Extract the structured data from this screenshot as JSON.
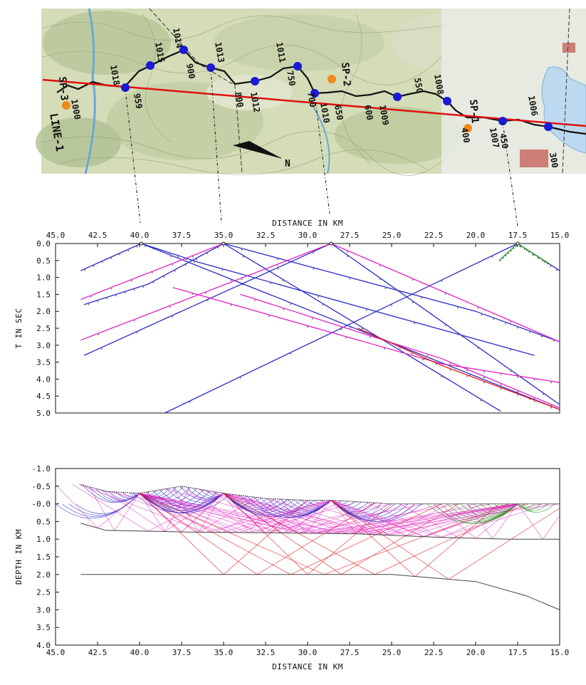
{
  "map": {
    "line_label": "LINE-1",
    "shot_labels": [
      "SP-3",
      "SP-2",
      "SP-1"
    ],
    "station_labels": [
      "1000",
      "1018",
      "959",
      "1015",
      "1014",
      "900",
      "1013",
      "1012",
      "800",
      "1011",
      "750",
      "700",
      "1010",
      "650",
      "600",
      "1009",
      "550",
      "1008",
      "1007",
      "450",
      "400",
      "1006",
      "300"
    ],
    "north_label": "N",
    "colors": {
      "profile_line": "#e01010",
      "station": "#1a1ad8",
      "shot": "#f08a1c",
      "route": "#111111"
    }
  },
  "chart_data": [
    {
      "type": "line",
      "panel": "travel-time",
      "xlabel": "DISTANCE IN KM",
      "ylabel": "T IN SEC",
      "xlim": [
        45.0,
        15.0
      ],
      "ylim": [
        0.0,
        5.0
      ],
      "x_ticks": [
        "45.0",
        "42.5",
        "40.0",
        "37.5",
        "35.0",
        "32.5",
        "30.0",
        "27.5",
        "25.0",
        "22.5",
        "20.0",
        "17.5",
        "15.0"
      ],
      "y_ticks": [
        "0.0",
        "0.5",
        "1.0",
        "1.5",
        "2.0",
        "2.5",
        "3.0",
        "3.5",
        "4.0",
        "4.5",
        "5.0"
      ],
      "shots_x": [
        39.9,
        35.0,
        28.6,
        17.5
      ],
      "series": [
        {
          "color": "#2b2bc8",
          "points": [
            [
              43.5,
              0.8
            ],
            [
              39.9,
              0.0
            ],
            [
              15.0,
              4.9
            ]
          ]
        },
        {
          "color": "#2b2bc8",
          "points": [
            [
              43.3,
              1.8
            ],
            [
              39.5,
              1.2
            ],
            [
              35.0,
              0.0
            ],
            [
              18.5,
              4.95
            ]
          ]
        },
        {
          "color": "#2b2bc8",
          "points": [
            [
              43.3,
              3.3
            ],
            [
              28.6,
              0.0
            ],
            [
              15.0,
              4.75
            ]
          ]
        },
        {
          "color": "#2b2bc8",
          "points": [
            [
              38.5,
              5.0
            ],
            [
              17.5,
              0.0
            ],
            [
              15.0,
              0.8
            ]
          ]
        },
        {
          "color": "#2b2bc8",
          "points": [
            [
              39.9,
              0.0
            ],
            [
              36.5,
              0.55
            ],
            [
              16.5,
              3.3
            ]
          ]
        },
        {
          "color": "#2b2bc8",
          "points": [
            [
              35.0,
              0.0
            ],
            [
              20.0,
              2.0
            ],
            [
              15.0,
              2.9
            ]
          ]
        },
        {
          "color": "#e020c0",
          "points": [
            [
              43.5,
              1.65
            ],
            [
              35.0,
              0.0
            ]
          ]
        },
        {
          "color": "#e020c0",
          "points": [
            [
              43.5,
              2.85
            ],
            [
              28.6,
              0.0
            ]
          ]
        },
        {
          "color": "#e020c0",
          "points": [
            [
              38.0,
              1.3
            ],
            [
              22.0,
              3.55
            ],
            [
              15.0,
              4.1
            ]
          ]
        },
        {
          "color": "#e020c0",
          "points": [
            [
              28.6,
              0.0
            ],
            [
              15.0,
              2.9
            ]
          ]
        },
        {
          "color": "#e020c0",
          "points": [
            [
              34.0,
              1.5
            ],
            [
              22.0,
              3.4
            ],
            [
              15.0,
              4.85
            ]
          ]
        },
        {
          "color": "#e01818",
          "points": [
            [
              27.0,
              2.5
            ],
            [
              22.0,
              3.6
            ],
            [
              15.0,
              4.9
            ]
          ]
        },
        {
          "color": "#18a018",
          "points": [
            [
              18.6,
              0.5
            ],
            [
              17.5,
              0.0
            ],
            [
              15.6,
              0.6
            ]
          ]
        }
      ]
    },
    {
      "type": "line",
      "panel": "ray-diagram",
      "xlabel": "DISTANCE IN KM",
      "ylabel": "DEPTH IN KM",
      "xlim": [
        45.0,
        15.0
      ],
      "ylim": [
        -1.0,
        4.0
      ],
      "x_ticks": [
        "45.0",
        "42.5",
        "40.0",
        "37.5",
        "35.0",
        "32.5",
        "30.0",
        "27.5",
        "25.0",
        "22.5",
        "20.0",
        "17.5",
        "15.0"
      ],
      "y_ticks": [
        "-1.0",
        "-0.5",
        "-0.0",
        "0.5",
        "1.0",
        "1.5",
        "2.0",
        "2.5",
        "3.0",
        "3.5",
        "4.0"
      ],
      "surface": [
        [
          43.5,
          -0.55
        ],
        [
          42.0,
          -0.35
        ],
        [
          40.0,
          -0.3
        ],
        [
          37.5,
          -0.5
        ],
        [
          35.0,
          -0.3
        ],
        [
          32.5,
          -0.15
        ],
        [
          30.0,
          -0.1
        ],
        [
          28.5,
          -0.1
        ],
        [
          25.0,
          0.0
        ],
        [
          20.0,
          0.0
        ],
        [
          15.0,
          0.0
        ]
      ],
      "interface1": [
        [
          43.5,
          0.55
        ],
        [
          42.0,
          0.75
        ],
        [
          37.0,
          0.8
        ],
        [
          32.0,
          0.82
        ],
        [
          27.0,
          0.85
        ],
        [
          22.0,
          0.95
        ],
        [
          18.0,
          1.0
        ],
        [
          15.0,
          1.0
        ]
      ],
      "interface2": [
        [
          43.5,
          2.0
        ],
        [
          25.0,
          2.0
        ],
        [
          20.0,
          2.2
        ],
        [
          17.0,
          2.6
        ],
        [
          15.0,
          3.0
        ]
      ],
      "ray_sources": [
        {
          "x": 40.0,
          "color": "#2b2bc8"
        },
        {
          "x": 35.0,
          "color": "#2b2bc8"
        },
        {
          "x": 28.6,
          "color": "#2b2bc8"
        },
        {
          "x": 17.5,
          "color": "#18a018"
        }
      ]
    }
  ]
}
